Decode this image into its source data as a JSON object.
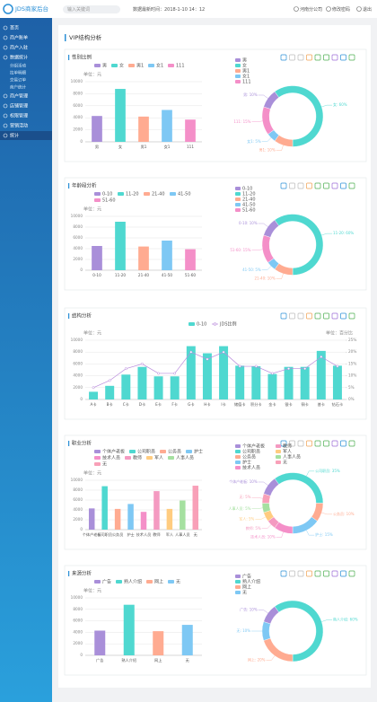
{
  "sidebar": {
    "logo": "JDS商家后台",
    "menu": [
      "首页",
      "商户账单",
      "商户入驻",
      "数据统计"
    ],
    "submenu": [
      "分组活动",
      "拉单明细",
      "交易订单",
      "商户统计"
    ],
    "menu2": [
      "商户管理",
      "店铺管理",
      "权限管理",
      "营销活动",
      "统计"
    ]
  },
  "header": {
    "search_placeholder": "输入关键词",
    "data_time": "数据最新时间：2018-1-10 14：12",
    "company": "河南分公司",
    "change_password": "修改密码",
    "logout": "退出"
  },
  "page_title": "VIP结构分析",
  "chart_data": [
    {
      "type": "bar",
      "title": "性别比例",
      "unit_label": "单位：元",
      "categories": [
        "男",
        "女",
        "男1",
        "女1",
        "111"
      ],
      "values": [
        4300,
        8800,
        4200,
        5300,
        3700
      ],
      "colors": [
        "#a98fd9",
        "#4fd8d0",
        "#ffab91",
        "#7ec8f4",
        "#f48fc8"
      ],
      "ylim": [
        0,
        10000
      ],
      "yticks": [
        0,
        2000,
        4000,
        6000,
        8000,
        10000
      ],
      "grid": true
    },
    {
      "type": "pie",
      "categories": [
        "男",
        "女",
        "男1",
        "女1",
        "111"
      ],
      "values": [
        10,
        60,
        10,
        5,
        15
      ],
      "value_labels": [
        "男: 10%",
        "女: 60%",
        "男1: 10%",
        "女1: 5%",
        "111: 15%"
      ],
      "colors": [
        "#a98fd9",
        "#4fd8d0",
        "#ffab91",
        "#7ec8f4",
        "#f48fc8"
      ]
    },
    {
      "type": "bar",
      "title": "年龄段分析",
      "unit_label": "单位：元",
      "categories": [
        "0-10",
        "11-20",
        "21-40",
        "41-50",
        "51-60"
      ],
      "values": [
        4500,
        9000,
        4400,
        5500,
        3900
      ],
      "colors": [
        "#a98fd9",
        "#4fd8d0",
        "#ffab91",
        "#7ec8f4",
        "#f48fc8"
      ],
      "ylim": [
        0,
        10000
      ],
      "yticks": [
        0,
        2000,
        4000,
        6000,
        8000,
        10000
      ],
      "grid": true
    },
    {
      "type": "pie",
      "categories": [
        "0-10",
        "11-20",
        "21-40",
        "41-50",
        "51-60"
      ],
      "values": [
        10,
        60,
        10,
        5,
        15
      ],
      "value_labels": [
        "0-10: 10%",
        "11-20: 60%",
        "21-40: 10%",
        "41-50: 5%",
        "51-60: 15%"
      ],
      "colors": [
        "#a98fd9",
        "#4fd8d0",
        "#ffab91",
        "#7ec8f4",
        "#f48fc8"
      ]
    },
    {
      "type": "combo",
      "title": "结构分析",
      "unit_label": "单位：元",
      "y2_unit_label": "单位：百分比",
      "categories": [
        "A卡",
        "B卡",
        "C卡",
        "D卡",
        "E卡",
        "F卡",
        "G卡",
        "H卡",
        "I卡",
        "储值卡",
        "积分卡",
        "金卡",
        "银卡",
        "铜卡",
        "普卡",
        "钻石卡"
      ],
      "series": [
        {
          "name": "0-10",
          "color": "#4fd8d0",
          "values": [
            1300,
            2300,
            4200,
            5500,
            3900,
            3900,
            9000,
            7800,
            9000,
            5700,
            5600,
            4300,
            5500,
            5500,
            8200,
            5700
          ]
        },
        {
          "name": "JDS比例",
          "color": "#b98bdc",
          "axis": "y2",
          "values": [
            5,
            8,
            13,
            15,
            11,
            11,
            20,
            17,
            20,
            14,
            14,
            11,
            13,
            13,
            18,
            14
          ]
        }
      ],
      "ylim": [
        0,
        10000
      ],
      "yticks": [
        0,
        2000,
        4000,
        6000,
        8000,
        10000
      ],
      "y2lim": [
        0,
        25
      ],
      "y2ticks": [
        {
          "value": 0,
          "label": "0%"
        },
        {
          "value": 5,
          "label": "5%"
        },
        {
          "value": 10,
          "label": "10%"
        },
        {
          "value": 15,
          "label": "15%"
        },
        {
          "value": 20,
          "label": "20%"
        },
        {
          "value": 25,
          "label": "25%"
        }
      ],
      "grid": true
    },
    {
      "type": "bar",
      "title": "职业分析",
      "unit_label": "单位：元",
      "categories": [
        "个体户老板",
        "公司职员",
        "公务员",
        "护士",
        "技术人员",
        "教师",
        "军人",
        "人事人员",
        "无"
      ],
      "values": [
        4300,
        8800,
        4200,
        5200,
        3600,
        7800,
        4200,
        5900,
        8900
      ],
      "colors": [
        "#a98fd9",
        "#4fd8d0",
        "#ffab91",
        "#7ec8f4",
        "#f48fc8",
        "#f49ac1",
        "#ffcc80",
        "#a5e0a0",
        "#f8a0b8"
      ],
      "ylim": [
        0,
        10000
      ],
      "yticks": [
        0,
        2000,
        4000,
        6000,
        8000,
        10000
      ],
      "grid": true
    },
    {
      "type": "pie",
      "categories": [
        "个体户老板",
        "公司职员",
        "公务员",
        "护士",
        "技术人员",
        "教师",
        "军人",
        "人事人员",
        "无"
      ],
      "values": [
        10,
        35,
        10,
        15,
        10,
        5,
        5,
        5,
        5
      ],
      "value_labels": [
        "个体户老板: 10%",
        "公司职员: 35%",
        "公务员: 10%",
        "护士: 15%",
        "技术人员: 10%",
        "教师: 5%",
        "军人: 5%",
        "人事人员: 5%",
        "无: 5%"
      ],
      "colors": [
        "#a98fd9",
        "#4fd8d0",
        "#ffab91",
        "#7ec8f4",
        "#f48fc8",
        "#f49ac1",
        "#ffcc80",
        "#a5e0a0",
        "#f8a0b8"
      ]
    },
    {
      "type": "bar",
      "title": "来源分析",
      "unit_label": "单位：元",
      "categories": [
        "广告",
        "熟人介绍",
        "网上",
        "无"
      ],
      "values": [
        4300,
        8800,
        4200,
        5300
      ],
      "colors": [
        "#a98fd9",
        "#4fd8d0",
        "#ffab91",
        "#7ec8f4"
      ],
      "ylim": [
        0,
        10000
      ],
      "yticks": [
        0,
        2000,
        4000,
        6000,
        8000,
        10000
      ],
      "grid": true
    },
    {
      "type": "pie",
      "categories": [
        "广告",
        "熟人介绍",
        "网上",
        "无"
      ],
      "values": [
        10,
        60,
        20,
        10
      ],
      "value_labels": [
        "广告: 10%",
        "熟人介绍: 60%",
        "网上: 20%",
        "无: 10%"
      ],
      "colors": [
        "#a98fd9",
        "#4fd8d0",
        "#ffab91",
        "#7ec8f4"
      ]
    }
  ]
}
